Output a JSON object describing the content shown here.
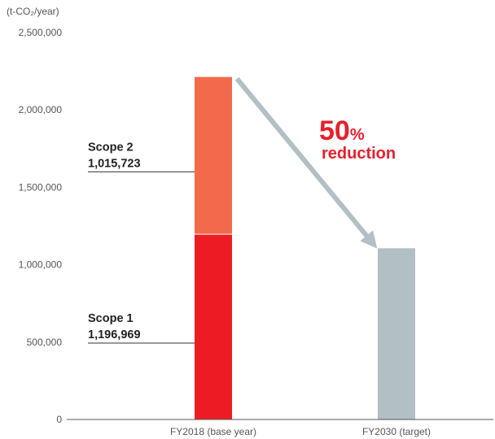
{
  "chart_data": {
    "type": "bar",
    "stacked": true,
    "unit_label": "(t-CO₂/year)",
    "categories": [
      "FY2018 (base year)",
      "FY2030 (target)"
    ],
    "ylim": [
      0,
      2500000
    ],
    "yticks": [
      0,
      500000,
      1000000,
      1500000,
      2000000,
      2500000
    ],
    "ytick_labels": [
      "0",
      "500,000",
      "1,000,000",
      "1,500,000",
      "2,000,000",
      "2,500,000"
    ],
    "series": [
      {
        "name": "Scope 1",
        "value_label": "1,196,969",
        "values": [
          1196969,
          null
        ],
        "color": "#ed1c24"
      },
      {
        "name": "Scope 2",
        "value_label": "1,015,723",
        "values": [
          1015723,
          null
        ],
        "color": "#f26a4b"
      },
      {
        "name": "",
        "values": [
          null,
          1106346
        ],
        "color": "#b2bfc4"
      }
    ],
    "annotation": {
      "number": "50",
      "percent": "%",
      "text": "reduction",
      "color": "#e5202c"
    },
    "arrow_color": "#b2bfc4",
    "grid": false,
    "legend": "none"
  }
}
